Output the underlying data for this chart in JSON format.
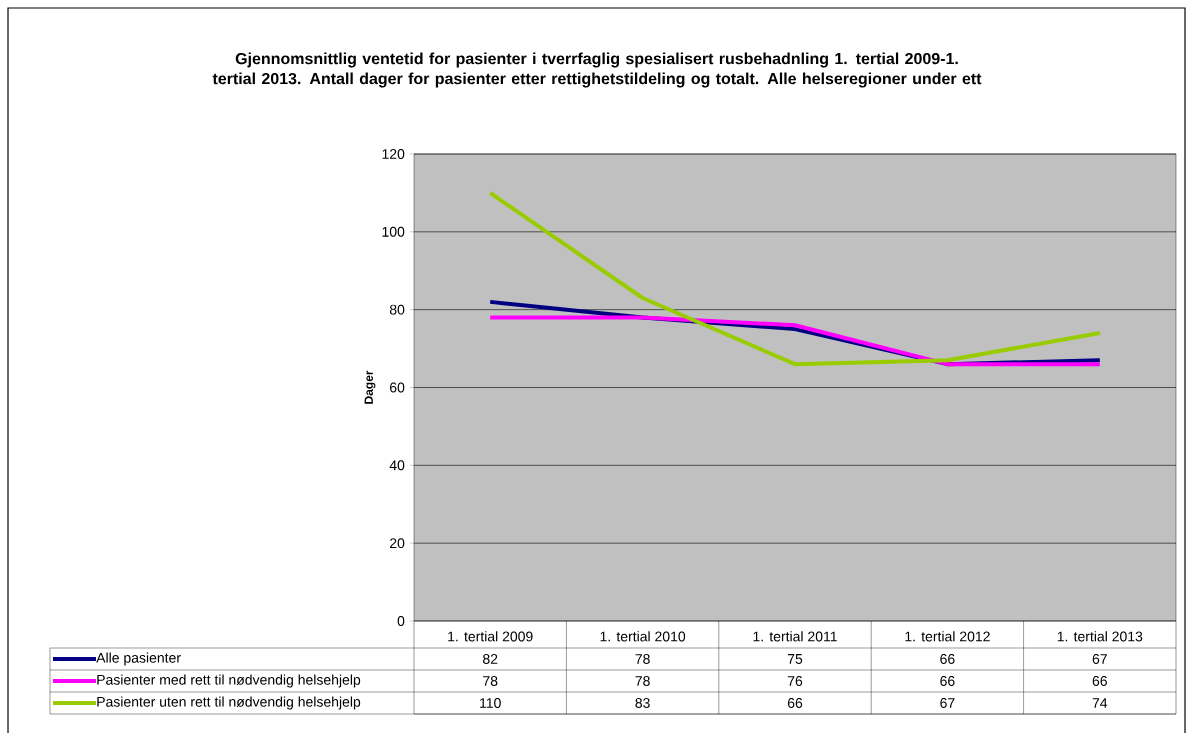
{
  "chart_data": {
    "type": "line",
    "title": "Gjennomsnittlig ventetid for pasienter i tverrfaglig spesialisert rusbehadnling 1. tertial 2009-1. tertial 2013. Antall dager for pasienter etter rettighetstildeling og totalt. Alle helseregioner under ett",
    "ylabel": "Dager",
    "categories": [
      "1. tertial 2009",
      "1. tertial 2010",
      "1. tertial 2011",
      "1. tertial 2012",
      "1. tertial 2013"
    ],
    "series": [
      {
        "name": "Alle pasienter",
        "color": "#000080",
        "values": [
          82,
          78,
          75,
          66,
          67
        ]
      },
      {
        "name": "Pasienter med rett til nødvendig helsehjelp",
        "color": "#ff00ff",
        "values": [
          78,
          78,
          76,
          66,
          66
        ]
      },
      {
        "name": "Pasienter uten rett til nødvendig helsehjelp",
        "color": "#99cc00",
        "values": [
          110,
          83,
          66,
          67,
          74
        ]
      }
    ],
    "ylim": [
      0,
      120
    ],
    "yticks": [
      0,
      20,
      40,
      60,
      80,
      100,
      120
    ],
    "grid": "y",
    "legend": "bottom",
    "data_labels": true,
    "marker": "none",
    "line_style": "solid"
  }
}
